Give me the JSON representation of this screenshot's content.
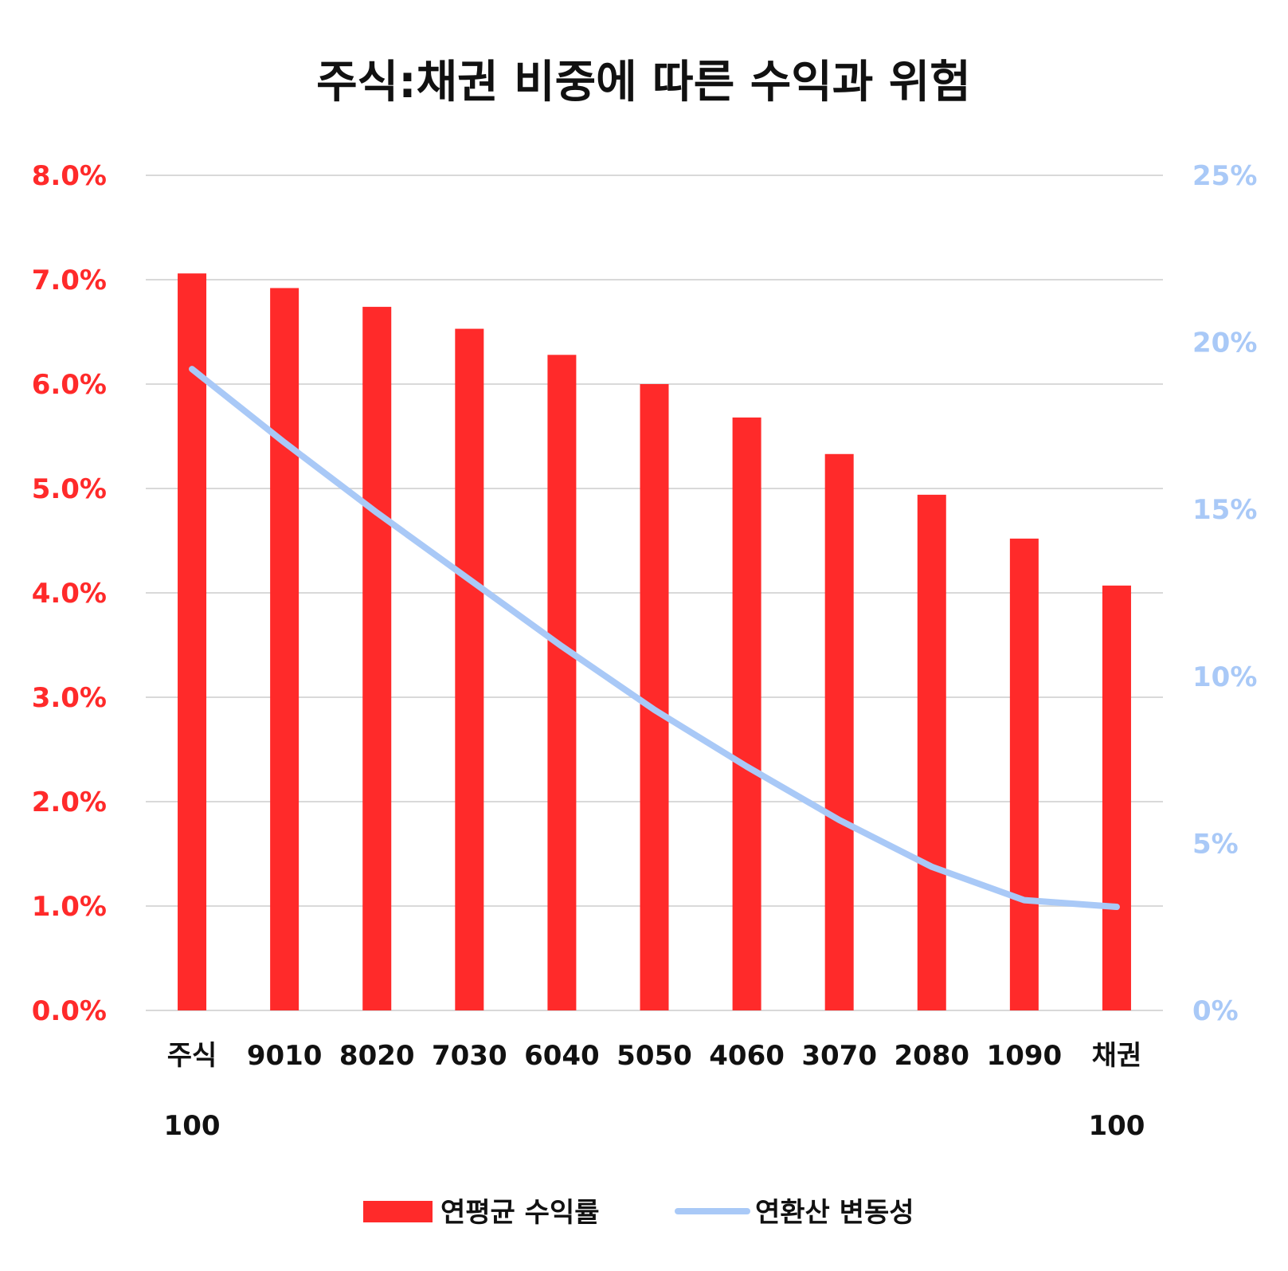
{
  "chart_data": {
    "type": "bar",
    "title": "주식:채권 비중에 따른 수익과 위험",
    "categories": [
      [
        "주식",
        "100"
      ],
      [
        "9010"
      ],
      [
        "8020"
      ],
      [
        "7030"
      ],
      [
        "6040"
      ],
      [
        "5050"
      ],
      [
        "4060"
      ],
      [
        "3070"
      ],
      [
        "2080"
      ],
      [
        "1090"
      ],
      [
        "채권",
        "100"
      ]
    ],
    "series": [
      {
        "name": "연평균 수익률",
        "type": "bar",
        "axis": "left",
        "color": "#ff2a2a",
        "values": [
          7.06,
          6.92,
          6.74,
          6.53,
          6.28,
          6.0,
          5.68,
          5.33,
          4.94,
          4.52,
          4.07
        ]
      },
      {
        "name": "연환산 변동성",
        "type": "line",
        "axis": "right",
        "color": "#a9c9f7",
        "values": [
          19.2,
          17.0,
          14.9,
          12.9,
          10.9,
          9.0,
          7.3,
          5.7,
          4.3,
          3.3,
          3.1
        ]
      }
    ],
    "y_left": {
      "min": 0,
      "max": 8.0,
      "ticks": [
        "0.0%",
        "1.0%",
        "2.0%",
        "3.0%",
        "4.0%",
        "5.0%",
        "6.0%",
        "7.0%",
        "8.0%"
      ],
      "color": "#ff2a2a"
    },
    "y_right": {
      "min": 0,
      "max": 25,
      "ticks": [
        "0%",
        "5%",
        "10%",
        "15%",
        "20%",
        "25%"
      ],
      "color": "#a9c9f7"
    },
    "grid": true,
    "grid_color": "#d9d9d9",
    "legend_position": "bottom"
  }
}
